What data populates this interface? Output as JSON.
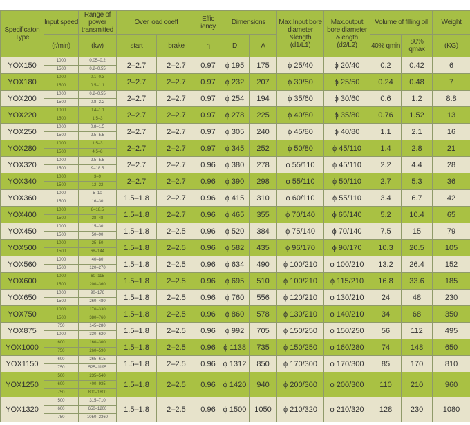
{
  "headers": {
    "spec": "Specificaton Type",
    "speed": "Input speed",
    "speed_unit": "(r/min)",
    "range": "Range of power transmitted",
    "range_unit": "(kw)",
    "overload": "Over load coeff",
    "start": "start",
    "brake": "brake",
    "eff": "Effic iency",
    "eff_sym": "η",
    "dims": "Dimensions",
    "D": "D",
    "A": "A",
    "input_bore": "Max.Input bore diameter &length",
    "input_bore_unit": "(d1/L1)",
    "output_bore": "Max.output bore diameter &length",
    "output_bore_unit": "(d2/L2)",
    "oil": "Volume of filling oil",
    "oil_min": "40% qmin",
    "oil_max": "80% qmax",
    "weight": "Weight",
    "weight_unit": "(KG)"
  },
  "rows": [
    {
      "type": "YOX150",
      "speeds": [
        "1000",
        "1500"
      ],
      "ranges": [
        "0.05–0.2",
        "0.2–0.55"
      ],
      "start": "2–2.7",
      "brake": "2–2.7",
      "eff": "0.97",
      "D": "ϕ 195",
      "A": "175",
      "d1": "ϕ 25/40",
      "d2": "ϕ 20/40",
      "qmin": "0.2",
      "qmax": "0.42",
      "weight": "6"
    },
    {
      "type": "YOX180",
      "speeds": [
        "1000",
        "1500"
      ],
      "ranges": [
        "0.1–0.3",
        "0.5–1.1"
      ],
      "start": "2–2.7",
      "brake": "2–2.7",
      "eff": "0.97",
      "D": "ϕ 232",
      "A": "207",
      "d1": "ϕ 30/50",
      "d2": "ϕ 25/50",
      "qmin": "0.24",
      "qmax": "0.48",
      "weight": "7"
    },
    {
      "type": "YOX200",
      "speeds": [
        "1000",
        "1500"
      ],
      "ranges": [
        "0.2–0.55",
        "0.8–2.2"
      ],
      "start": "2–2.7",
      "brake": "2–2.7",
      "eff": "0.97",
      "D": "ϕ 254",
      "A": "194",
      "d1": "ϕ 35/60",
      "d2": "ϕ 30/60",
      "qmin": "0.6",
      "qmax": "1.2",
      "weight": "8.8"
    },
    {
      "type": "YOX220",
      "speeds": [
        "1000",
        "1500"
      ],
      "ranges": [
        "0.4–1.1",
        "1.5–3"
      ],
      "start": "2–2.7",
      "brake": "2–2.7",
      "eff": "0.97",
      "D": "ϕ 278",
      "A": "225",
      "d1": "ϕ 40/80",
      "d2": "ϕ 35/80",
      "qmin": "0.76",
      "qmax": "1.52",
      "weight": "13"
    },
    {
      "type": "YOX250",
      "speeds": [
        "1000",
        "1500"
      ],
      "ranges": [
        "0.8–1.5",
        "2.5–5.5"
      ],
      "start": "2–2.7",
      "brake": "2–2.7",
      "eff": "0.97",
      "D": "ϕ 305",
      "A": "240",
      "d1": "ϕ 45/80",
      "d2": "ϕ 40/80",
      "qmin": "1.1",
      "qmax": "2.1",
      "weight": "16"
    },
    {
      "type": "YOX280",
      "speeds": [
        "1000",
        "1500"
      ],
      "ranges": [
        "1.5–3",
        "4.5–8"
      ],
      "start": "2–2.7",
      "brake": "2–2.7",
      "eff": "0.97",
      "D": "ϕ 345",
      "A": "252",
      "d1": "ϕ 50/80",
      "d2": "ϕ 45/110",
      "qmin": "1.4",
      "qmax": "2.8",
      "weight": "21"
    },
    {
      "type": "YOX320",
      "speeds": [
        "1000",
        "1500"
      ],
      "ranges": [
        "2.5–5.5",
        "9–18.5"
      ],
      "start": "2–2.7",
      "brake": "2–2.7",
      "eff": "0.96",
      "D": "ϕ 380",
      "A": "278",
      "d1": "ϕ 55/110",
      "d2": "ϕ 45/110",
      "qmin": "2.2",
      "qmax": "4.4",
      "weight": "28"
    },
    {
      "type": "YOX340",
      "speeds": [
        "1000",
        "1500"
      ],
      "ranges": [
        "3–9",
        "12–22"
      ],
      "start": "2–2.7",
      "brake": "2–2.7",
      "eff": "0.96",
      "D": "ϕ 390",
      "A": "298",
      "d1": "ϕ 55/110",
      "d2": "ϕ 50/110",
      "qmin": "2.7",
      "qmax": "5.3",
      "weight": "36"
    },
    {
      "type": "YOX360",
      "speeds": [
        "1000",
        "1500"
      ],
      "ranges": [
        "5–10",
        "16–30"
      ],
      "start": "1.5–1.8",
      "brake": "2–2.7",
      "eff": "0.96",
      "D": "ϕ 415",
      "A": "310",
      "d1": "ϕ 60/110",
      "d2": "ϕ 55/110",
      "qmin": "3.4",
      "qmax": "6.7",
      "weight": "42"
    },
    {
      "type": "YOX400",
      "speeds": [
        "1000",
        "1500"
      ],
      "ranges": [
        "8–18.5",
        "28–48"
      ],
      "start": "1.5–1.8",
      "brake": "2–2.7",
      "eff": "0.96",
      "D": "ϕ 465",
      "A": "355",
      "d1": "ϕ 70/140",
      "d2": "ϕ 65/140",
      "qmin": "5.2",
      "qmax": "10.4",
      "weight": "65"
    },
    {
      "type": "YOX450",
      "speeds": [
        "1000",
        "1500"
      ],
      "ranges": [
        "15–30",
        "50–90"
      ],
      "start": "1.5–1.8",
      "brake": "2–2.5",
      "eff": "0.96",
      "D": "ϕ 520",
      "A": "384",
      "d1": "ϕ 75/140",
      "d2": "ϕ 70/140",
      "qmin": "7.5",
      "qmax": "15",
      "weight": "79"
    },
    {
      "type": "YOX500",
      "speeds": [
        "1000",
        "1500"
      ],
      "ranges": [
        "25–50",
        "68–144"
      ],
      "start": "1.5–1.8",
      "brake": "2–2.5",
      "eff": "0.96",
      "D": "ϕ 582",
      "A": "435",
      "d1": "ϕ 96/170",
      "d2": "ϕ 90/170",
      "qmin": "10.3",
      "qmax": "20.5",
      "weight": "105"
    },
    {
      "type": "YOX560",
      "speeds": [
        "1000",
        "1500"
      ],
      "ranges": [
        "40–80",
        "120–270"
      ],
      "start": "1.5–1.8",
      "brake": "2–2.5",
      "eff": "0.96",
      "D": "ϕ 634",
      "A": "490",
      "d1": "ϕ 100/210",
      "d2": "ϕ 100/210",
      "qmin": "13.2",
      "qmax": "26.4",
      "weight": "152"
    },
    {
      "type": "YOX600",
      "speeds": [
        "1000",
        "1500"
      ],
      "ranges": [
        "60–115",
        "200–360"
      ],
      "start": "1.5–1.8",
      "brake": "2–2.5",
      "eff": "0.96",
      "D": "ϕ 695",
      "A": "510",
      "d1": "ϕ 100/210",
      "d2": "ϕ 115/210",
      "qmin": "16.8",
      "qmax": "33.6",
      "weight": "185"
    },
    {
      "type": "YOX650",
      "speeds": [
        "1000",
        "1500"
      ],
      "ranges": [
        "90–176",
        "260–480"
      ],
      "start": "1.5–1.8",
      "brake": "2–2.5",
      "eff": "0.96",
      "D": "ϕ 760",
      "A": "556",
      "d1": "ϕ 120/210",
      "d2": "ϕ 130/210",
      "qmin": "24",
      "qmax": "48",
      "weight": "230"
    },
    {
      "type": "YOX750",
      "speeds": [
        "1000",
        "1500"
      ],
      "ranges": [
        "170–330",
        "380–760"
      ],
      "start": "1.5–1.8",
      "brake": "2–2.5",
      "eff": "0.96",
      "D": "ϕ 860",
      "A": "578",
      "d1": "ϕ 130/210",
      "d2": "ϕ 140/210",
      "qmin": "34",
      "qmax": "68",
      "weight": "350"
    },
    {
      "type": "YOX875",
      "speeds": [
        "750",
        "1000"
      ],
      "ranges": [
        "145–280",
        "330–620"
      ],
      "start": "1.5–1.8",
      "brake": "2–2.5",
      "eff": "0.96",
      "D": "ϕ 992",
      "A": "705",
      "d1": "ϕ 150/250",
      "d2": "ϕ 150/250",
      "qmin": "56",
      "qmax": "112",
      "weight": "495"
    },
    {
      "type": "YOX1000",
      "speeds": [
        "600",
        "750"
      ],
      "ranges": [
        "160–300",
        "260–590"
      ],
      "start": "1.5–1.8",
      "brake": "2–2.5",
      "eff": "0.96",
      "D": "ϕ 1138",
      "A": "735",
      "d1": "ϕ 150/250",
      "d2": "ϕ 160/280",
      "qmin": "74",
      "qmax": "148",
      "weight": "650"
    },
    {
      "type": "YOX1150",
      "speeds": [
        "600",
        "750"
      ],
      "ranges": [
        "265–615",
        "525–1195"
      ],
      "start": "1.5–1.8",
      "brake": "2–2.5",
      "eff": "0.96",
      "D": "ϕ 1312",
      "A": "850",
      "d1": "ϕ 170/300",
      "d2": "ϕ 170/300",
      "qmin": "85",
      "qmax": "170",
      "weight": "810"
    },
    {
      "type": "YOX1250",
      "speeds": [
        "500",
        "600",
        "750"
      ],
      "ranges": [
        "235–540",
        "400–935",
        "800–1800"
      ],
      "start": "1.5–1.8",
      "brake": "2–2.5",
      "eff": "0.96",
      "D": "ϕ 1420",
      "A": "940",
      "d1": "ϕ 200/300",
      "d2": "ϕ 200/300",
      "qmin": "110",
      "qmax": "210",
      "weight": "960"
    },
    {
      "type": "YOX1320",
      "speeds": [
        "500",
        "600",
        "750"
      ],
      "ranges": [
        "315–710",
        "650–1200",
        "1050–2360"
      ],
      "start": "1.5–1.8",
      "brake": "2–2.5",
      "eff": "0.96",
      "D": "ϕ 1500",
      "A": "1050",
      "d1": "ϕ 210/320",
      "d2": "ϕ 210/320",
      "qmin": "128",
      "qmax": "230",
      "weight": "1080"
    }
  ]
}
